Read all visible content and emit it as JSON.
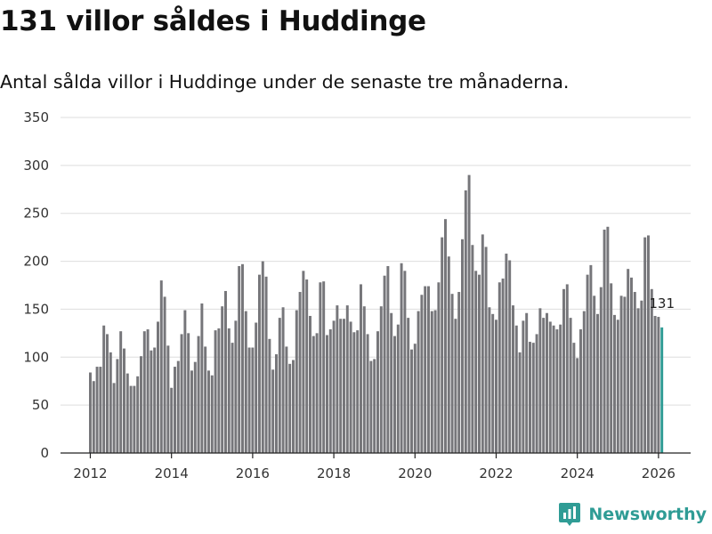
{
  "header": {
    "title": "131 villor såldes i Huddinge",
    "subtitle": "Antal sålda villor i Huddinge under de senaste tre månaderna."
  },
  "brand": {
    "name": "Newsworthy"
  },
  "colors": {
    "bar": "#76767a",
    "highlight": "#2f9c95",
    "grid": "#dedede",
    "axis": "#222222"
  },
  "chart_data": {
    "type": "bar",
    "title": "131 villor såldes i Huddinge",
    "subtitle": "Antal sålda villor i Huddinge under de senaste tre månaderna.",
    "xlabel": "",
    "ylabel": "",
    "ylim": [
      0,
      350
    ],
    "yticks": [
      0,
      50,
      100,
      150,
      200,
      250,
      300,
      350
    ],
    "xticks": [
      2012,
      2014,
      2016,
      2018,
      2020,
      2022,
      2024,
      2026
    ],
    "x_start": 2012,
    "x_step_months": 1,
    "grid": true,
    "highlight_last": true,
    "last_label": "131",
    "values": [
      84,
      75,
      90,
      90,
      133,
      124,
      105,
      73,
      98,
      127,
      109,
      83,
      70,
      70,
      80,
      101,
      127,
      129,
      107,
      110,
      137,
      180,
      163,
      112,
      68,
      90,
      96,
      124,
      149,
      125,
      86,
      95,
      122,
      156,
      111,
      86,
      81,
      128,
      130,
      153,
      169,
      130,
      115,
      138,
      195,
      197,
      148,
      110,
      110,
      136,
      186,
      200,
      184,
      119,
      87,
      103,
      141,
      152,
      111,
      93,
      97,
      149,
      168,
      190,
      181,
      143,
      122,
      125,
      178,
      179,
      123,
      129,
      138,
      154,
      140,
      140,
      154,
      137,
      126,
      128,
      176,
      153,
      124,
      96,
      98,
      127,
      153,
      185,
      195,
      146,
      122,
      134,
      198,
      190,
      141,
      108,
      114,
      148,
      165,
      174,
      174,
      148,
      149,
      178,
      225,
      244,
      205,
      166,
      140,
      168,
      223,
      274,
      290,
      217,
      190,
      186,
      228,
      215,
      152,
      145,
      139,
      178,
      182,
      208,
      201,
      154,
      133,
      105,
      138,
      146,
      116,
      115,
      124,
      151,
      141,
      146,
      137,
      133,
      129,
      134,
      171,
      176,
      141,
      115,
      99,
      129,
      148,
      186,
      196,
      164,
      145,
      173,
      233,
      236,
      177,
      144,
      139,
      164,
      163,
      192,
      183,
      168,
      151,
      159,
      225,
      227,
      171,
      143,
      142,
      131
    ]
  }
}
